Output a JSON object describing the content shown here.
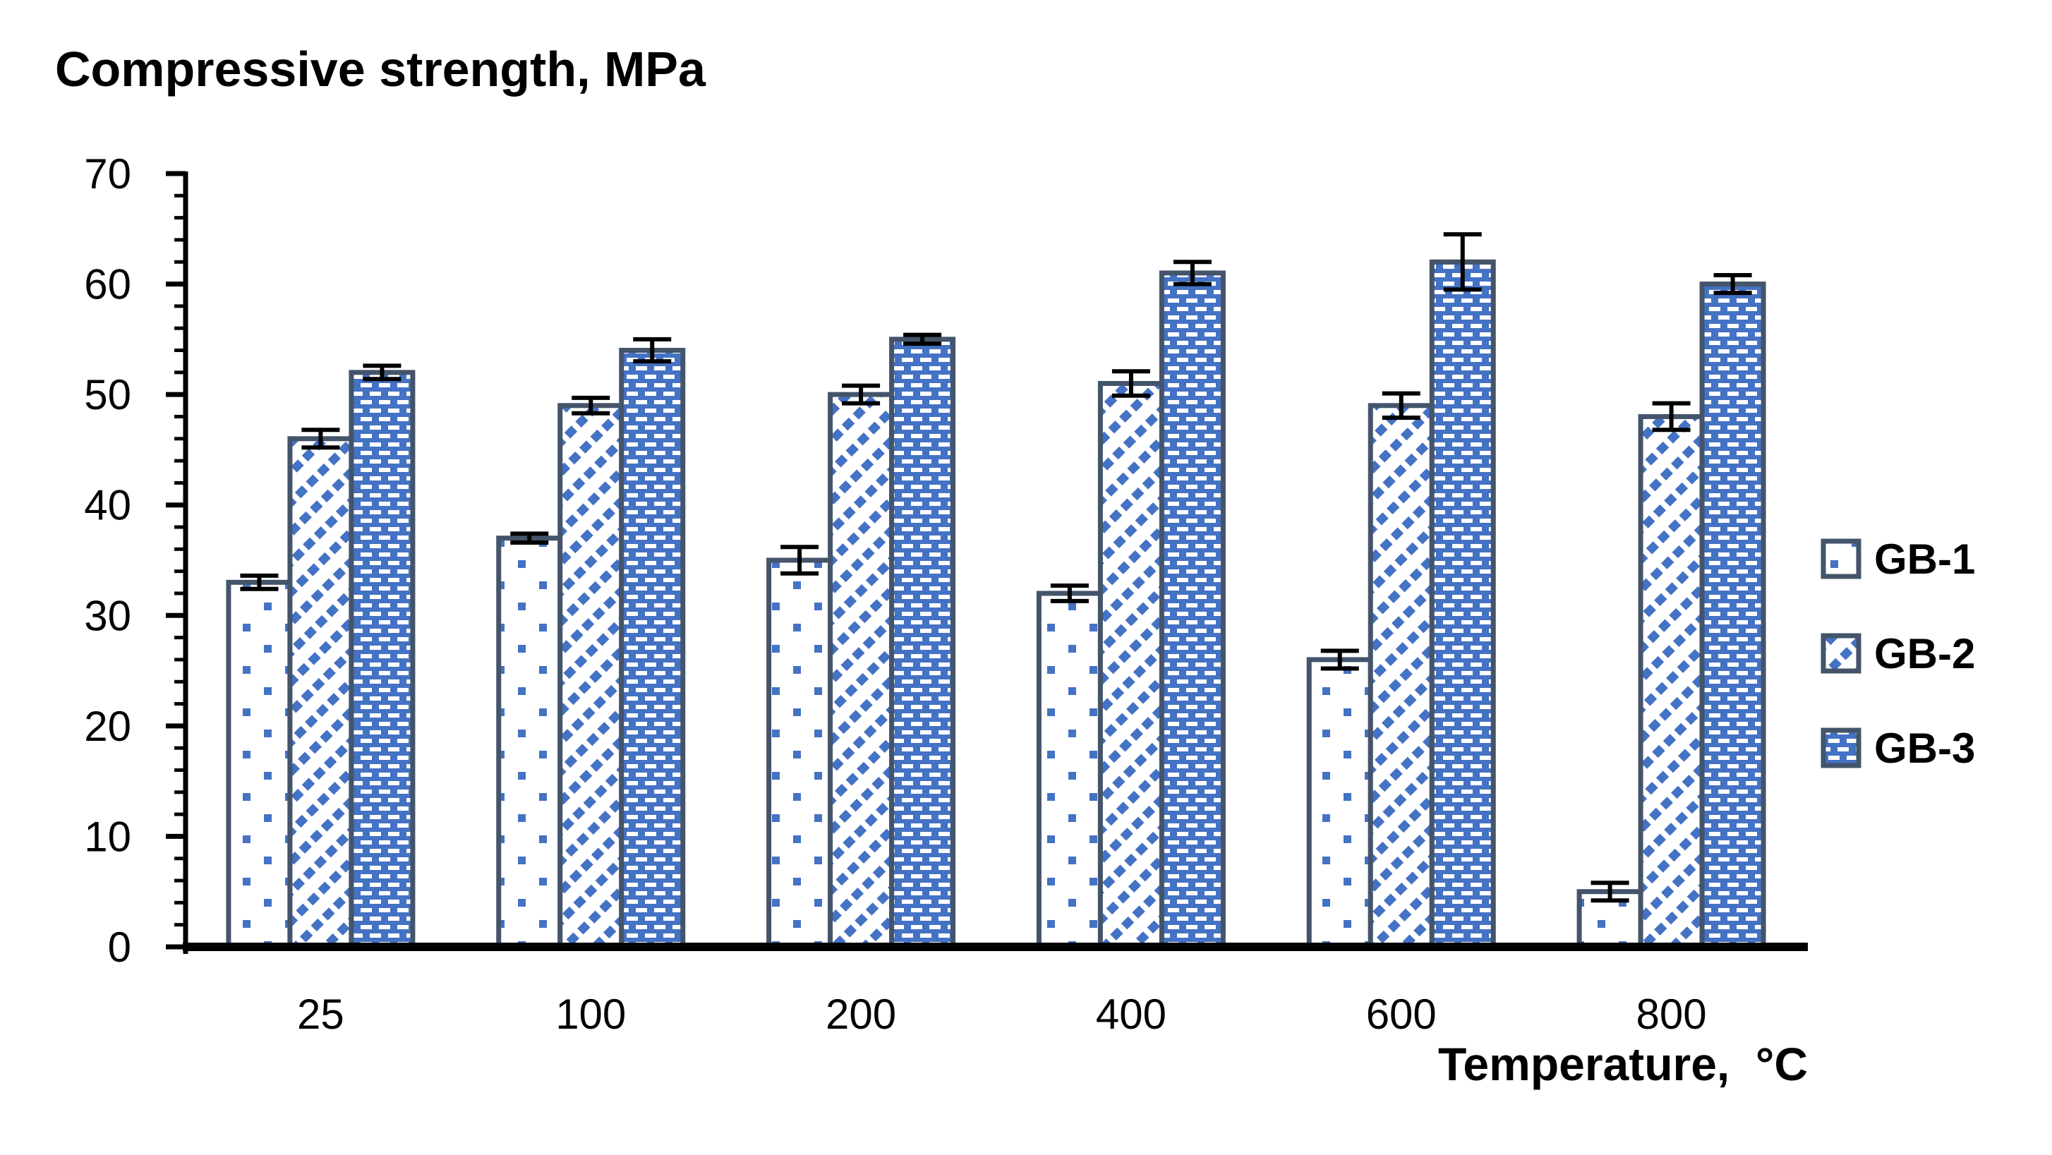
{
  "chart_data": {
    "type": "bar",
    "title": "Compressive strength, MPa",
    "xlabel": "Temperature,  °C",
    "ylabel": "",
    "categories": [
      "25",
      "100",
      "200",
      "400",
      "600",
      "800"
    ],
    "series": [
      {
        "name": "GB-1",
        "pattern": "dots",
        "values": [
          33,
          37,
          35,
          32,
          26,
          5
        ],
        "errors": [
          0.6,
          0.4,
          1.2,
          0.7,
          0.8,
          0.8
        ]
      },
      {
        "name": "GB-2",
        "pattern": "diagonal",
        "values": [
          46,
          49,
          50,
          51,
          49,
          48
        ],
        "errors": [
          0.8,
          0.7,
          0.8,
          1.1,
          1.1,
          1.2
        ]
      },
      {
        "name": "GB-3",
        "pattern": "bricks",
        "values": [
          52,
          54,
          55,
          61,
          62,
          60
        ],
        "errors": [
          0.6,
          1.0,
          0.4,
          1.0,
          2.5,
          0.8
        ]
      }
    ],
    "ylim": [
      0,
      70
    ],
    "y_major_step": 10,
    "y_minor_step": 2,
    "y_tick_labels": [
      "0",
      "10",
      "20",
      "30",
      "40",
      "50",
      "60",
      "70"
    ],
    "grid": false,
    "legend_position": "right",
    "error_bars": true
  },
  "colors": {
    "bar_blue": "#4472C4",
    "bar_border": "#44546A",
    "axis": "#000000",
    "error_bar": "#000000",
    "text": "#000000",
    "background": "#FFFFFF"
  }
}
